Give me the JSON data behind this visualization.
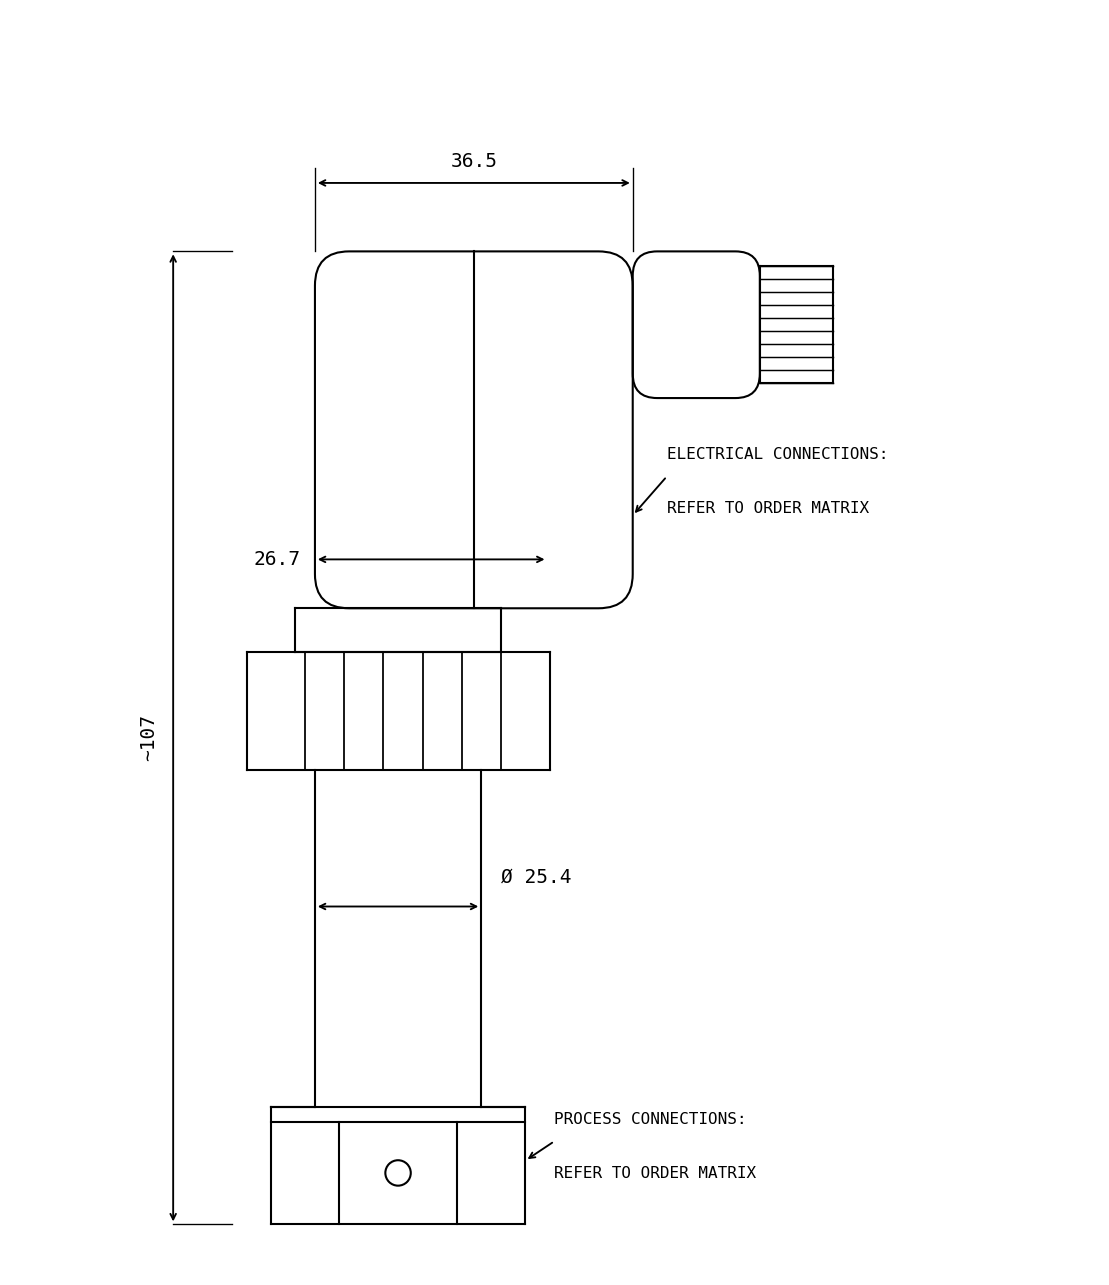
{
  "bg_color": "#ffffff",
  "line_color": "#000000",
  "lw": 1.5,
  "fig_width": 11.09,
  "fig_height": 12.85,
  "dim_36_5": "36.5",
  "dim_26_7": "26.7",
  "dim_107": "~107",
  "dim_25_4": "Ø 25.4",
  "label_elec1": "ELECTRICAL CONNECTIONS:",
  "label_elec2": "REFER TO ORDER MATRIX",
  "label_proc1": "PROCESS CONNECTIONS:",
  "label_proc2": "REFER TO ORDER MATRIX",
  "font_size_dim": 14,
  "font_size_label": 11.5
}
